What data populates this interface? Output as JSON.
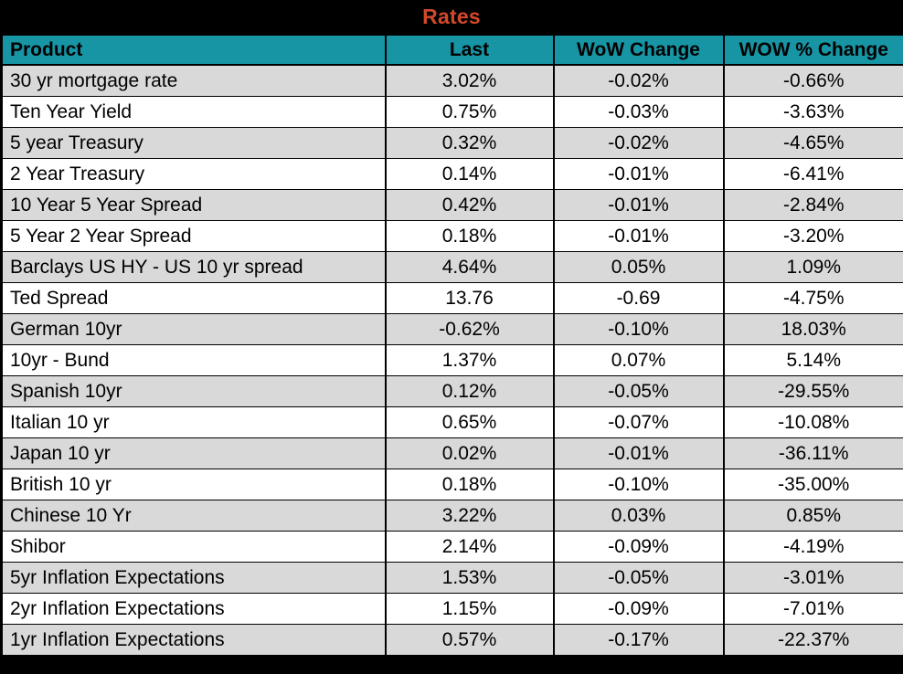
{
  "title": "Rates",
  "colors": {
    "title_bg": "#000000",
    "title_text": "#d0492b",
    "header_bg": "#1795a5",
    "header_text": "#000000",
    "row_alt_bg": "#d9d9d9",
    "row_bg": "#ffffff",
    "grid_border": "#000000"
  },
  "chart_data": {
    "type": "table",
    "title": "Rates",
    "columns": [
      "Product",
      "Last",
      "WoW Change",
      "WOW % Change"
    ],
    "rows": [
      [
        "30 yr mortgage rate",
        "3.02%",
        "-0.02%",
        "-0.66%"
      ],
      [
        "Ten Year Yield",
        "0.75%",
        "-0.03%",
        "-3.63%"
      ],
      [
        "5 year Treasury",
        "0.32%",
        "-0.02%",
        "-4.65%"
      ],
      [
        "2 Year Treasury",
        "0.14%",
        "-0.01%",
        "-6.41%"
      ],
      [
        "10 Year 5 Year Spread",
        "0.42%",
        "-0.01%",
        "-2.84%"
      ],
      [
        "5 Year 2 Year Spread",
        "0.18%",
        "-0.01%",
        "-3.20%"
      ],
      [
        "Barclays US HY - US 10 yr spread",
        "4.64%",
        "0.05%",
        "1.09%"
      ],
      [
        "Ted Spread",
        "13.76",
        "-0.69",
        "-4.75%"
      ],
      [
        "German 10yr",
        "-0.62%",
        "-0.10%",
        "18.03%"
      ],
      [
        "10yr - Bund",
        "1.37%",
        "0.07%",
        "5.14%"
      ],
      [
        "Spanish 10yr",
        "0.12%",
        "-0.05%",
        "-29.55%"
      ],
      [
        "Italian 10 yr",
        "0.65%",
        "-0.07%",
        "-10.08%"
      ],
      [
        "Japan 10 yr",
        "0.02%",
        "-0.01%",
        "-36.11%"
      ],
      [
        "British 10 yr",
        "0.18%",
        "-0.10%",
        "-35.00%"
      ],
      [
        "Chinese 10 Yr",
        "3.22%",
        "0.03%",
        "0.85%"
      ],
      [
        "Shibor",
        "2.14%",
        "-0.09%",
        "-4.19%"
      ],
      [
        "5yr Inflation Expectations",
        "1.53%",
        "-0.05%",
        "-3.01%"
      ],
      [
        "2yr Inflation Expectations",
        "1.15%",
        "-0.09%",
        "-7.01%"
      ],
      [
        "1yr Inflation Expectations",
        "0.57%",
        "-0.17%",
        "-22.37%"
      ]
    ]
  }
}
